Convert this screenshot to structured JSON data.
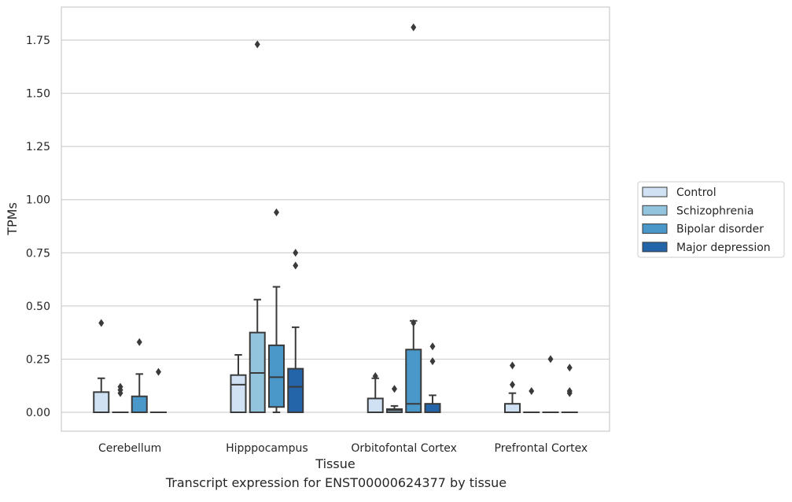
{
  "chart_data": {
    "type": "box",
    "title": "",
    "caption": "Transcript expression for ENST00000624377 by tissue",
    "xlabel": "Tissue",
    "ylabel": "TPMs",
    "ylim": [
      -0.09,
      1.9
    ],
    "yticks": [
      0.0,
      0.25,
      0.5,
      0.75,
      1.0,
      1.25,
      1.5,
      1.75
    ],
    "ytick_labels": [
      "0.00",
      "0.25",
      "0.50",
      "0.75",
      "1.00",
      "1.25",
      "1.50",
      "1.75"
    ],
    "grid": "horizontal",
    "legend_position": "right",
    "categories": [
      "Cerebellum",
      "Hipppocampus",
      "Orbitofontal Cortex",
      "Prefrontal Cortex"
    ],
    "series": [
      {
        "name": "Control",
        "color": "#cfe1f2",
        "boxes": [
          {
            "q1": 0.0,
            "median": 0.0,
            "q3": 0.095,
            "whisker_low": 0.0,
            "whisker_high": 0.16,
            "outliers": [
              0.42
            ]
          },
          {
            "q1": 0.0,
            "median": 0.13,
            "q3": 0.175,
            "whisker_low": 0.0,
            "whisker_high": 0.27,
            "outliers": []
          },
          {
            "q1": 0.0,
            "median": 0.0,
            "q3": 0.065,
            "whisker_low": 0.0,
            "whisker_high": 0.16,
            "outliers": [
              0.17
            ]
          },
          {
            "q1": 0.0,
            "median": 0.0,
            "q3": 0.04,
            "whisker_low": 0.0,
            "whisker_high": 0.09,
            "outliers": [
              0.13,
              0.22
            ]
          }
        ]
      },
      {
        "name": "Schizophrenia",
        "color": "#93c4de",
        "boxes": [
          {
            "q1": 0.0,
            "median": 0.0,
            "q3": 0.0,
            "whisker_low": 0.0,
            "whisker_high": 0.0,
            "outliers": [
              0.09,
              0.105,
              0.12
            ]
          },
          {
            "q1": 0.0,
            "median": 0.185,
            "q3": 0.375,
            "whisker_low": 0.0,
            "whisker_high": 0.53,
            "outliers": [
              1.73
            ]
          },
          {
            "q1": 0.0,
            "median": 0.01,
            "q3": 0.015,
            "whisker_low": 0.0,
            "whisker_high": 0.03,
            "outliers": [
              0.11
            ]
          },
          {
            "q1": 0.0,
            "median": 0.0,
            "q3": 0.0,
            "whisker_low": 0.0,
            "whisker_high": 0.0,
            "outliers": [
              0.1
            ]
          }
        ]
      },
      {
        "name": "Bipolar disorder",
        "color": "#4a98c9",
        "boxes": [
          {
            "q1": 0.0,
            "median": 0.0,
            "q3": 0.075,
            "whisker_low": 0.0,
            "whisker_high": 0.18,
            "outliers": [
              0.33
            ]
          },
          {
            "q1": 0.025,
            "median": 0.165,
            "q3": 0.315,
            "whisker_low": 0.0,
            "whisker_high": 0.59,
            "outliers": [
              0.94
            ]
          },
          {
            "q1": 0.0,
            "median": 0.04,
            "q3": 0.295,
            "whisker_low": 0.0,
            "whisker_high": 0.43,
            "outliers": [
              0.42,
              1.81
            ]
          },
          {
            "q1": 0.0,
            "median": 0.0,
            "q3": 0.0,
            "whisker_low": 0.0,
            "whisker_high": 0.0,
            "outliers": [
              0.25
            ]
          }
        ]
      },
      {
        "name": "Major depression",
        "color": "#2464a8",
        "boxes": [
          {
            "q1": 0.0,
            "median": 0.0,
            "q3": 0.0,
            "whisker_low": 0.0,
            "whisker_high": 0.0,
            "outliers": [
              0.19
            ]
          },
          {
            "q1": 0.0,
            "median": 0.12,
            "q3": 0.205,
            "whisker_low": 0.0,
            "whisker_high": 0.4,
            "outliers": [
              0.69,
              0.75
            ]
          },
          {
            "q1": 0.0,
            "median": 0.0,
            "q3": 0.04,
            "whisker_low": 0.0,
            "whisker_high": 0.08,
            "outliers": [
              0.24,
              0.31
            ]
          },
          {
            "q1": 0.0,
            "median": 0.0,
            "q3": 0.0,
            "whisker_low": 0.0,
            "whisker_high": 0.0,
            "outliers": [
              0.09,
              0.1,
              0.21
            ]
          }
        ]
      }
    ]
  }
}
